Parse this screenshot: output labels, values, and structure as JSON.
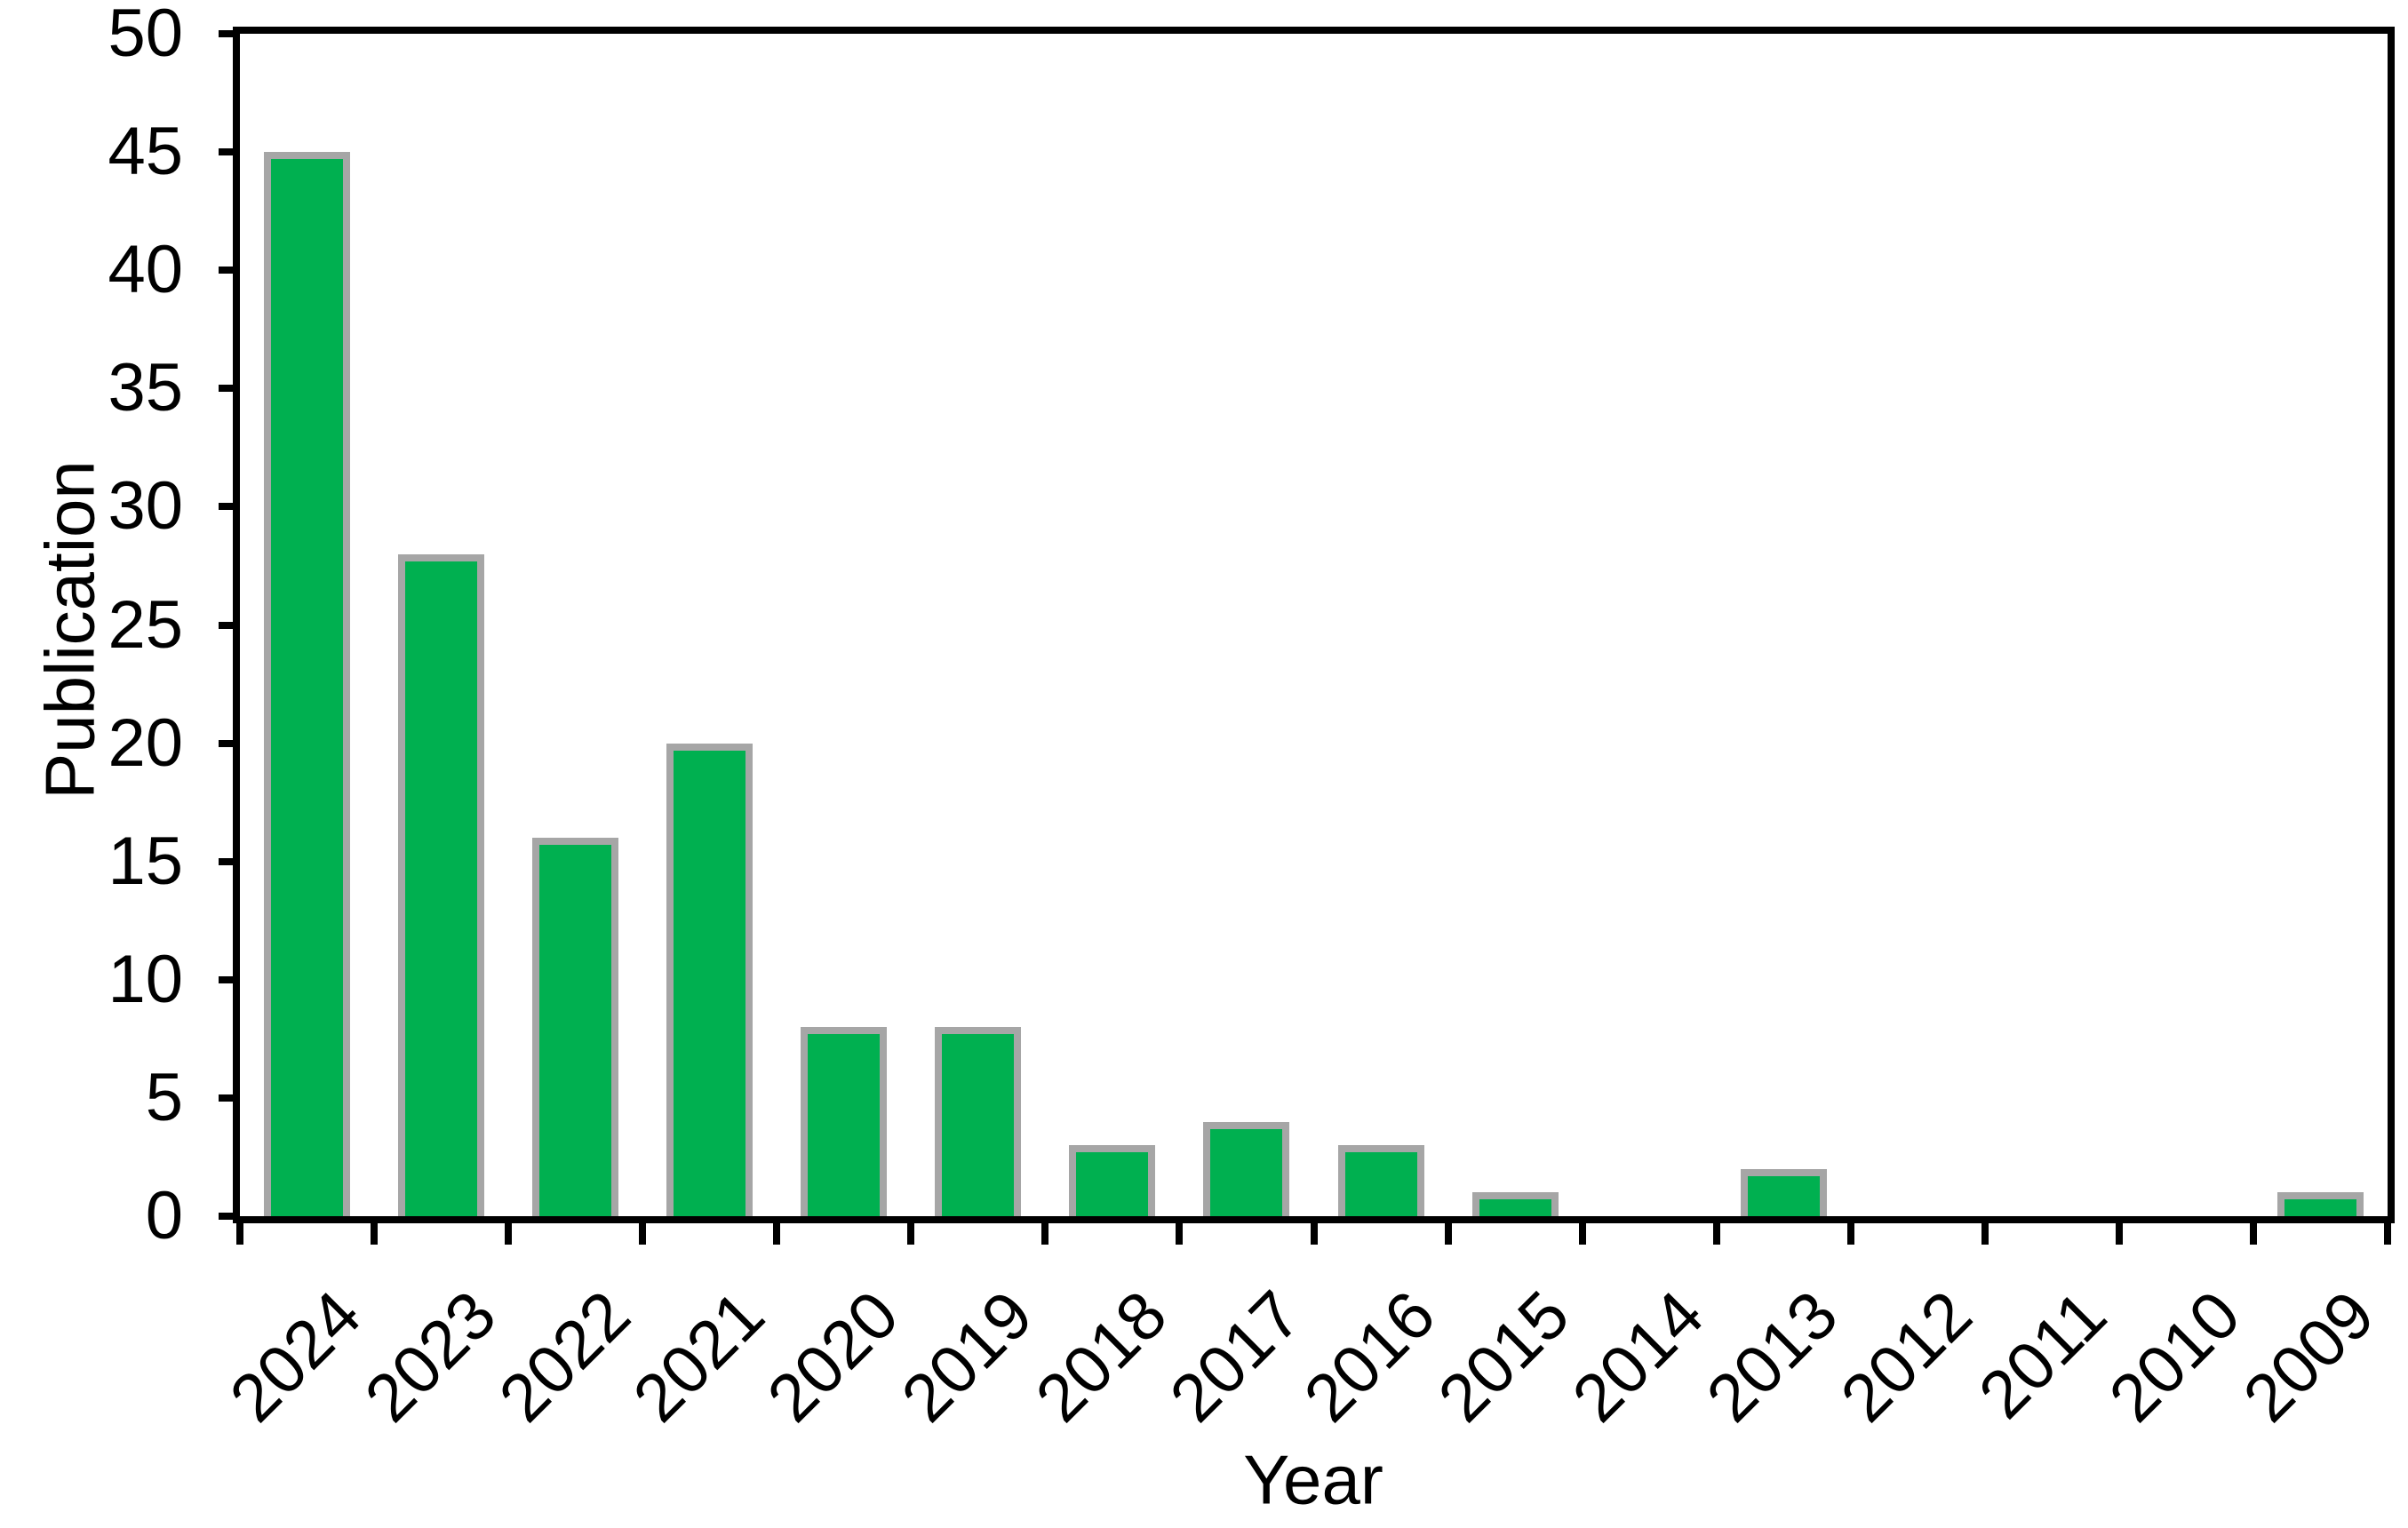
{
  "chart_data": {
    "type": "bar",
    "title": "",
    "xlabel": "Year",
    "ylabel": "Publication",
    "categories": [
      "2024",
      "2023",
      "2022",
      "2021",
      "2020",
      "2019",
      "2018",
      "2017",
      "2016",
      "2015",
      "2014",
      "2013",
      "2012",
      "2011",
      "2010",
      "2009"
    ],
    "values": [
      45,
      28,
      16,
      20,
      8,
      8,
      3,
      4,
      3,
      1,
      0,
      2,
      0,
      0,
      0,
      1
    ],
    "ylim": [
      0,
      50
    ],
    "ytick_step": 5,
    "yticks": [
      0,
      5,
      10,
      15,
      20,
      25,
      30,
      35,
      40,
      45,
      50
    ],
    "grid": false,
    "legend_position": "none",
    "bar_fill_color": "#00B050",
    "bar_border_color": "#A6A6A6",
    "axis_color": "#000000",
    "background_color": "#FFFFFF"
  }
}
